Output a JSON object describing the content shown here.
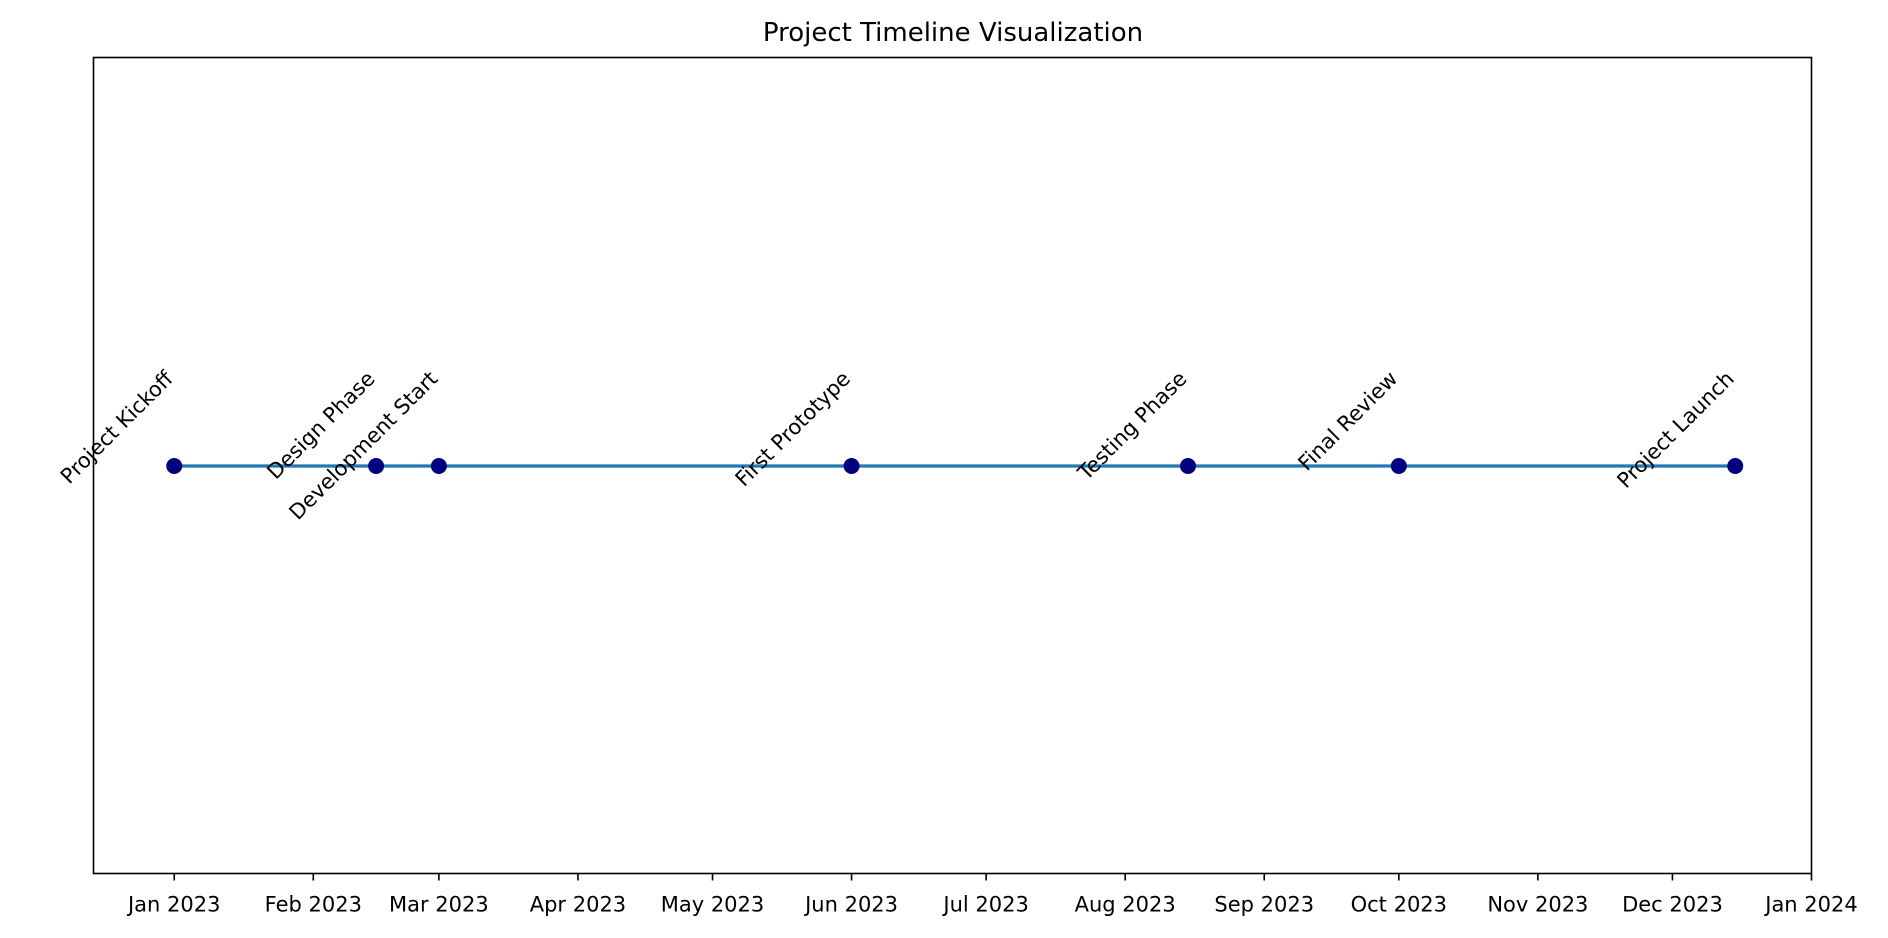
{
  "chart_data": {
    "type": "scatter",
    "title": "Project Timeline Visualization",
    "xlabel": "",
    "ylabel": "",
    "x_axis": {
      "type": "date",
      "range": [
        "2022-12-14",
        "2024-01-01"
      ],
      "ticks": [
        {
          "date": "2023-01-01",
          "label": "Jan 2023"
        },
        {
          "date": "2023-02-01",
          "label": "Feb 2023"
        },
        {
          "date": "2023-03-01",
          "label": "Mar 2023"
        },
        {
          "date": "2023-04-01",
          "label": "Apr 2023"
        },
        {
          "date": "2023-05-01",
          "label": "May 2023"
        },
        {
          "date": "2023-06-01",
          "label": "Jun 2023"
        },
        {
          "date": "2023-07-01",
          "label": "Jul 2023"
        },
        {
          "date": "2023-08-01",
          "label": "Aug 2023"
        },
        {
          "date": "2023-09-01",
          "label": "Sep 2023"
        },
        {
          "date": "2023-10-01",
          "label": "Oct 2023"
        },
        {
          "date": "2023-11-01",
          "label": "Nov 2023"
        },
        {
          "date": "2023-12-01",
          "label": "Dec 2023"
        },
        {
          "date": "2024-01-01",
          "label": "Jan 2024"
        }
      ]
    },
    "y_axis": {
      "visible": false
    },
    "grid": false,
    "line_color": "#1f77b4",
    "marker_color": "#000080",
    "events": [
      {
        "date": "2023-01-01",
        "label": "Project Kickoff"
      },
      {
        "date": "2023-02-15",
        "label": "Design Phase"
      },
      {
        "date": "2023-03-01",
        "label": "Development Start"
      },
      {
        "date": "2023-06-01",
        "label": "First Prototype"
      },
      {
        "date": "2023-08-15",
        "label": "Testing Phase"
      },
      {
        "date": "2023-10-01",
        "label": "Final Review"
      },
      {
        "date": "2023-12-15",
        "label": "Project Launch"
      }
    ]
  }
}
